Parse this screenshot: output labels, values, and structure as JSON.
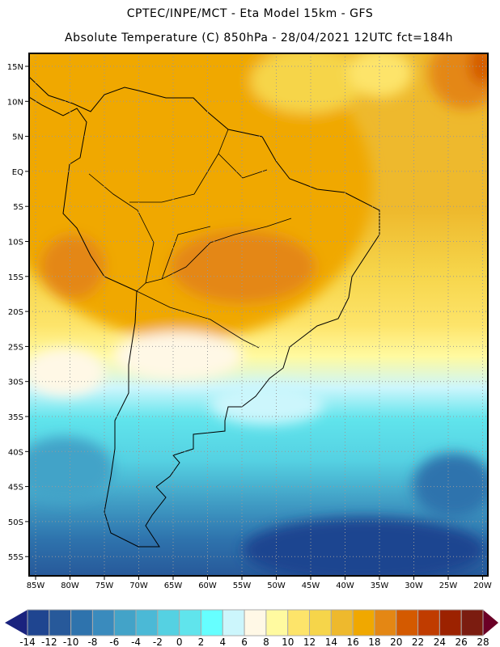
{
  "header": {
    "line1": "CPTEC/INPE/MCT -  Eta Model 15km - GFS",
    "line2": "Absolute Temperature (C) 850hPa - 28/04/2021 12UTC fct=184h"
  },
  "map": {
    "lat_labels": [
      "15N",
      "10N",
      "5N",
      "EQ",
      "5S",
      "10S",
      "15S",
      "20S",
      "25S",
      "30S",
      "35S",
      "40S",
      "45S",
      "50S",
      "55S"
    ],
    "lon_labels": [
      "85W",
      "80W",
      "75W",
      "70W",
      "65W",
      "60W",
      "55W",
      "50W",
      "45W",
      "40W",
      "35W",
      "30W",
      "25W",
      "20W"
    ]
  },
  "colorbar": {
    "labels": [
      "-14",
      "-12",
      "-10",
      "-8",
      "-6",
      "-4",
      "-2",
      "0",
      "2",
      "4",
      "6",
      "8",
      "10",
      "12",
      "14",
      "16",
      "18",
      "20",
      "22",
      "24",
      "26",
      "28"
    ],
    "colors": [
      "#1f4590",
      "#27599a",
      "#2e73ad",
      "#3a8bbd",
      "#43a3c8",
      "#4bb9d6",
      "#55d1e2",
      "#60e4ec",
      "#66ffff",
      "#ccf6fc",
      "#fff8e6",
      "#fffaa0",
      "#fde46a",
      "#f6d54a",
      "#eeb92d",
      "#f0a800",
      "#e48714",
      "#d45a00",
      "#c03c00",
      "#9c2200",
      "#7b1c10"
    ],
    "low_arrow_color": "#1a237e",
    "high_arrow_color": "#6b0026"
  }
}
